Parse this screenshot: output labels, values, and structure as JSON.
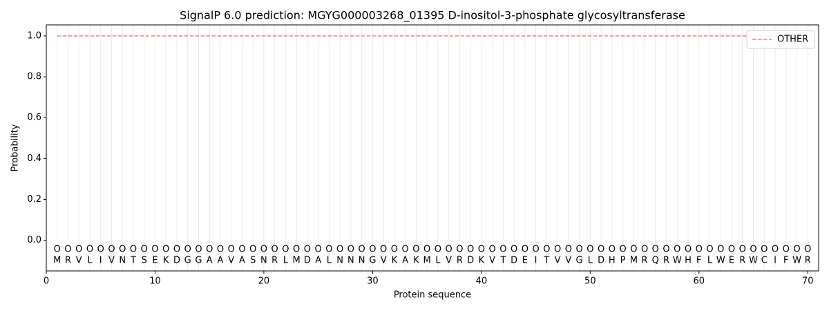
{
  "chart_data": {
    "type": "line",
    "title": "SignalP 6.0 prediction: MGYG000003268_01395 D-inositol-3-phosphate glycosyltransferase",
    "x_label": "Protein sequence",
    "y_label": "Probability",
    "x": [
      1,
      2,
      3,
      4,
      5,
      6,
      7,
      8,
      9,
      10,
      11,
      12,
      13,
      14,
      15,
      16,
      17,
      18,
      19,
      20,
      21,
      22,
      23,
      24,
      25,
      26,
      27,
      28,
      29,
      30,
      31,
      32,
      33,
      34,
      35,
      36,
      37,
      38,
      39,
      40,
      41,
      42,
      43,
      44,
      45,
      46,
      47,
      48,
      49,
      50,
      51,
      52,
      53,
      54,
      55,
      56,
      57,
      58,
      59,
      60,
      61,
      62,
      63,
      64,
      65,
      66,
      67,
      68,
      69,
      70
    ],
    "sequence": [
      "M",
      "R",
      "V",
      "L",
      "I",
      "V",
      "N",
      "T",
      "S",
      "E",
      "K",
      "D",
      "G",
      "G",
      "A",
      "A",
      "V",
      "A",
      "S",
      "N",
      "R",
      "L",
      "M",
      "D",
      "A",
      "L",
      "N",
      "N",
      "N",
      "G",
      "V",
      "K",
      "A",
      "K",
      "M",
      "L",
      "V",
      "R",
      "D",
      "K",
      "V",
      "T",
      "D",
      "E",
      "I",
      "T",
      "V",
      "V",
      "G",
      "L",
      "D",
      "H",
      "P",
      "M",
      "R",
      "Q",
      "R",
      "W",
      "H",
      "F",
      "L",
      "W",
      "E",
      "R",
      "W",
      "C",
      "I",
      "F",
      "W",
      "R"
    ],
    "region_labels": [
      "O",
      "O",
      "O",
      "O",
      "O",
      "O",
      "O",
      "O",
      "O",
      "O",
      "O",
      "O",
      "O",
      "O",
      "O",
      "O",
      "O",
      "O",
      "O",
      "O",
      "O",
      "O",
      "O",
      "O",
      "O",
      "O",
      "O",
      "O",
      "O",
      "O",
      "O",
      "O",
      "O",
      "O",
      "O",
      "O",
      "O",
      "O",
      "O",
      "O",
      "O",
      "O",
      "O",
      "O",
      "O",
      "O",
      "O",
      "O",
      "O",
      "O",
      "O",
      "O",
      "O",
      "O",
      "O",
      "O",
      "O",
      "O",
      "O",
      "O",
      "O",
      "O",
      "O",
      "O",
      "O",
      "O",
      "O",
      "O",
      "O",
      "O"
    ],
    "series": [
      {
        "name": "OTHER",
        "color": "#f08080",
        "dashed": true,
        "values": [
          1,
          1,
          1,
          1,
          1,
          1,
          1,
          1,
          1,
          1,
          1,
          1,
          1,
          1,
          1,
          1,
          1,
          1,
          1,
          1,
          1,
          1,
          1,
          1,
          1,
          1,
          1,
          1,
          1,
          1,
          1,
          1,
          1,
          1,
          1,
          1,
          1,
          1,
          1,
          1,
          1,
          1,
          1,
          1,
          1,
          1,
          1,
          1,
          1,
          1,
          1,
          1,
          1,
          1,
          1,
          1,
          1,
          1,
          1,
          1,
          1,
          1,
          1,
          1,
          1,
          1,
          1,
          1,
          1,
          1
        ]
      }
    ],
    "xlim": [
      0,
      71
    ],
    "ylim": [
      -0.15,
      1.054
    ],
    "xticks": [
      0,
      10,
      20,
      30,
      40,
      50,
      60,
      70
    ],
    "yticks": [
      {
        "value": 0,
        "label": "0.0"
      },
      0.2,
      0.4,
      0.6,
      0.8,
      {
        "value": 1,
        "label": "1.0"
      }
    ],
    "legend": "upper right"
  }
}
